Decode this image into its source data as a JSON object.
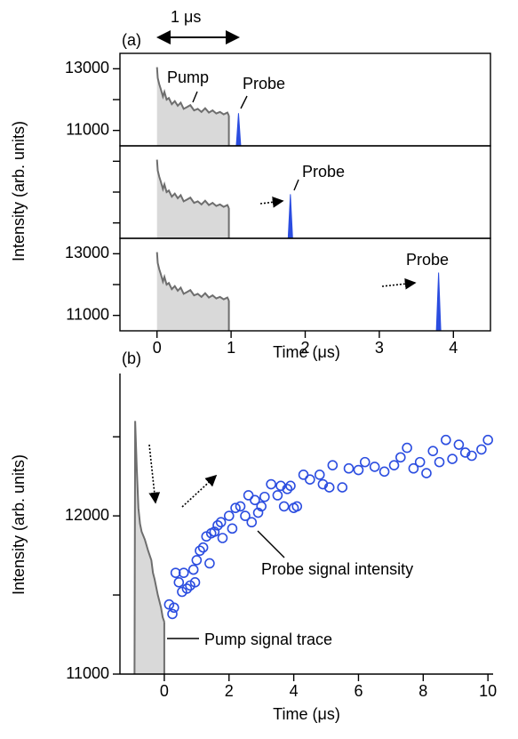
{
  "chart_data": [
    {
      "type": "pump-probe",
      "label": "(a)",
      "scale_label": "1 μs",
      "xlabel": "Time (μs)",
      "ylabel": "Intensity (arb. units)",
      "xlim": [
        -0.5,
        4.5
      ],
      "xticks": [
        0,
        1,
        2,
        3,
        4
      ],
      "pump": {
        "label": "Pump",
        "color": "#6e6e6e",
        "fill": "#d9d9d9",
        "x": [
          0,
          0.01,
          0.03,
          0.05,
          0.08,
          0.1,
          0.13,
          0.16,
          0.2,
          0.24,
          0.28,
          0.32,
          0.36,
          0.4,
          0.45,
          0.5,
          0.55,
          0.6,
          0.65,
          0.7,
          0.75,
          0.8,
          0.85,
          0.9,
          0.95,
          0.97
        ],
        "values": [
          13050,
          12700,
          12500,
          12350,
          12100,
          12250,
          12000,
          12050,
          11850,
          11950,
          11800,
          11900,
          11700,
          11750,
          11820,
          11650,
          11700,
          11600,
          11720,
          11580,
          11650,
          11550,
          11600,
          11520,
          11580,
          11480
        ]
      },
      "panels": [
        {
          "ylim": [
            10500,
            13500
          ],
          "yticks": [
            11000,
            13000
          ],
          "minor_yticks": [
            12000
          ],
          "probe": {
            "label": "Probe",
            "x": 1.1,
            "value": 11560,
            "color": "#2b4de0"
          }
        },
        {
          "ylim": [
            10500,
            13500
          ],
          "yticks": [],
          "minor_yticks": [
            11000,
            12000,
            13000
          ],
          "probe": {
            "label": "Probe",
            "x": 1.8,
            "value": 11930,
            "color": "#2b4de0"
          }
        },
        {
          "ylim": [
            10500,
            13500
          ],
          "yticks": [
            11000,
            13000
          ],
          "minor_yticks": [
            12000
          ],
          "probe": {
            "label": "Probe",
            "x": 3.8,
            "value": 12390,
            "color": "#2b4de0"
          }
        }
      ]
    },
    {
      "type": "scatter",
      "label": "(b)",
      "xlabel": "Time (μs)",
      "ylabel": "Intensity (arb. units)",
      "xlim": [
        -1.37,
        10.16
      ],
      "xticks": [
        0,
        2,
        4,
        6,
        8,
        10
      ],
      "ylim": [
        11000,
        12900
      ],
      "yticks": [
        11000,
        12000
      ],
      "minor_yticks": [
        11500,
        12500
      ],
      "pump": {
        "name": "Pump signal trace",
        "color": "#6e6e6e",
        "fill": "#d9d9d9",
        "x": [
          -0.92,
          -0.9,
          -0.85,
          -0.8,
          -0.75,
          -0.7,
          -0.6,
          -0.5,
          -0.4,
          -0.35,
          -0.3,
          -0.2,
          -0.1,
          -0.05,
          0
        ],
        "values": [
          11000,
          12600,
          12300,
          12050,
          11950,
          11900,
          11850,
          11780,
          11720,
          11640,
          11600,
          11500,
          11420,
          11360,
          11330
        ]
      },
      "series": [
        {
          "name": "Probe signal intensity",
          "color": "#2b4de0",
          "x": [
            0.15,
            0.25,
            0.3,
            0.35,
            0.45,
            0.55,
            0.6,
            0.7,
            0.8,
            0.9,
            0.95,
            1.0,
            1.1,
            1.2,
            1.3,
            1.4,
            1.45,
            1.55,
            1.65,
            1.75,
            1.8,
            2.0,
            2.1,
            2.2,
            2.35,
            2.5,
            2.6,
            2.7,
            2.8,
            2.9,
            3.0,
            3.1,
            3.3,
            3.5,
            3.6,
            3.7,
            3.8,
            3.9,
            4.0,
            4.1,
            4.3,
            4.5,
            4.8,
            4.9,
            5.1,
            5.2,
            5.5,
            5.7,
            6.0,
            6.2,
            6.5,
            6.8,
            7.1,
            7.3,
            7.5,
            7.7,
            7.9,
            8.1,
            8.3,
            8.5,
            8.7,
            8.9,
            9.1,
            9.3,
            9.5,
            9.8,
            10.0
          ],
          "values": [
            11440,
            11380,
            11420,
            11640,
            11580,
            11520,
            11640,
            11540,
            11560,
            11660,
            11580,
            11720,
            11780,
            11800,
            11870,
            11700,
            11890,
            11900,
            11940,
            11960,
            11860,
            12000,
            11920,
            12050,
            12060,
            12000,
            12130,
            11960,
            12100,
            12020,
            12060,
            12120,
            12200,
            12130,
            12190,
            12060,
            12170,
            12190,
            12050,
            12060,
            12260,
            12230,
            12260,
            12200,
            12180,
            12320,
            12180,
            12300,
            12290,
            12340,
            12310,
            12280,
            12320,
            12370,
            12430,
            12300,
            12340,
            12270,
            12410,
            12340,
            12480,
            12360,
            12450,
            12400,
            12380,
            12420,
            12480
          ]
        }
      ]
    }
  ]
}
